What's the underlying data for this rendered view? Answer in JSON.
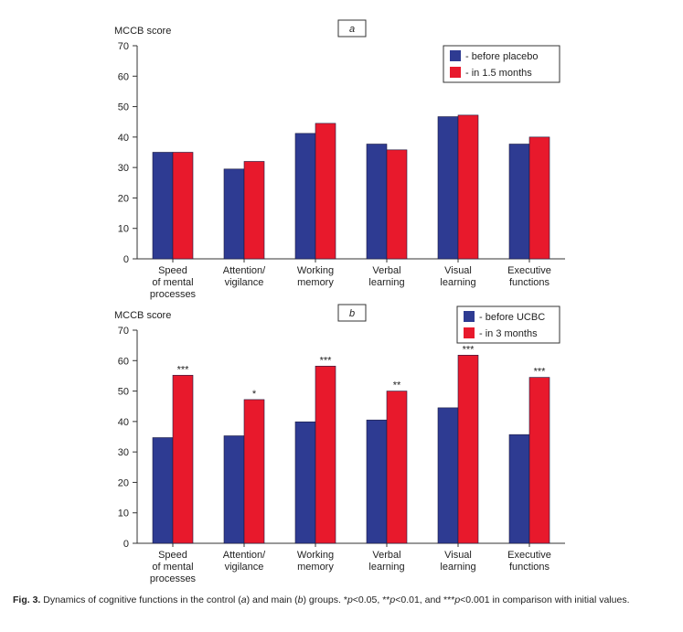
{
  "chart_data": [
    {
      "type": "bar",
      "title": "a",
      "y_label": "MCCB score",
      "categories": [
        "Speed\nof mental\nprocesses",
        "Attention/\nvigilance",
        "Working\nmemory",
        "Verbal\nlearning",
        "Visual\nlearning",
        "Executive\nfunctions"
      ],
      "series": [
        {
          "name": "- before placebo",
          "color": "#2e3b92",
          "values": [
            35,
            29.5,
            41.2,
            37.7,
            46.7,
            37.7
          ]
        },
        {
          "name": "- in 1.5 months",
          "color": "#e8192c",
          "values": [
            35,
            32,
            44.5,
            35.8,
            47.2,
            40
          ]
        }
      ],
      "ylim": [
        0,
        70
      ],
      "yticks": [
        0,
        10,
        20,
        30,
        40,
        50,
        60,
        70
      ],
      "legend": "upper right"
    },
    {
      "type": "bar",
      "title": "b",
      "y_label": "MCCB score",
      "categories": [
        "Speed\nof mental\nprocesses",
        "Attention/\nvigilance",
        "Working\nmemory",
        "Verbal\nlearning",
        "Visual\nlearning",
        "Executive\nfunctions"
      ],
      "series": [
        {
          "name": "- before UCBC",
          "color": "#2e3b92",
          "values": [
            34.7,
            35.3,
            39.9,
            40.5,
            44.5,
            35.7
          ]
        },
        {
          "name": "- in 3 months",
          "color": "#e8192c",
          "values": [
            55.2,
            47.2,
            58.2,
            50,
            61.8,
            54.5
          ]
        }
      ],
      "annotations": [
        "***",
        "*",
        "***",
        "**",
        "***",
        "***"
      ],
      "ylim": [
        0,
        70
      ],
      "yticks": [
        0,
        10,
        20,
        30,
        40,
        50,
        60,
        70
      ],
      "legend": "upper right"
    }
  ],
  "caption": [
    "Fig. 3.",
    " Dynamics of cognitive functions in the control (",
    "a",
    ") and main (",
    "b",
    ") groups. *",
    "p",
    "<0.05, **",
    "p",
    "<0.01, and ***",
    "p",
    "<0.001 in comparison with initial values."
  ]
}
